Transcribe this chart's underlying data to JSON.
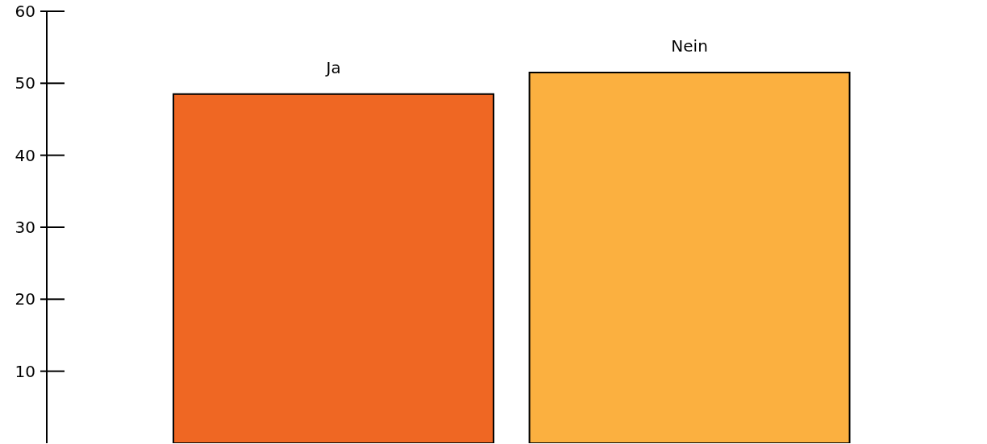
{
  "chart_data": {
    "type": "bar",
    "categories": [
      "Ja",
      "Nein"
    ],
    "colors": [
      "#ef6723",
      "#fbb040"
    ],
    "values": [
      48.5,
      51.5
    ],
    "ylim": [
      0,
      60
    ],
    "yticks": [
      10,
      20,
      30,
      40,
      50,
      60
    ],
    "grid": false
  }
}
